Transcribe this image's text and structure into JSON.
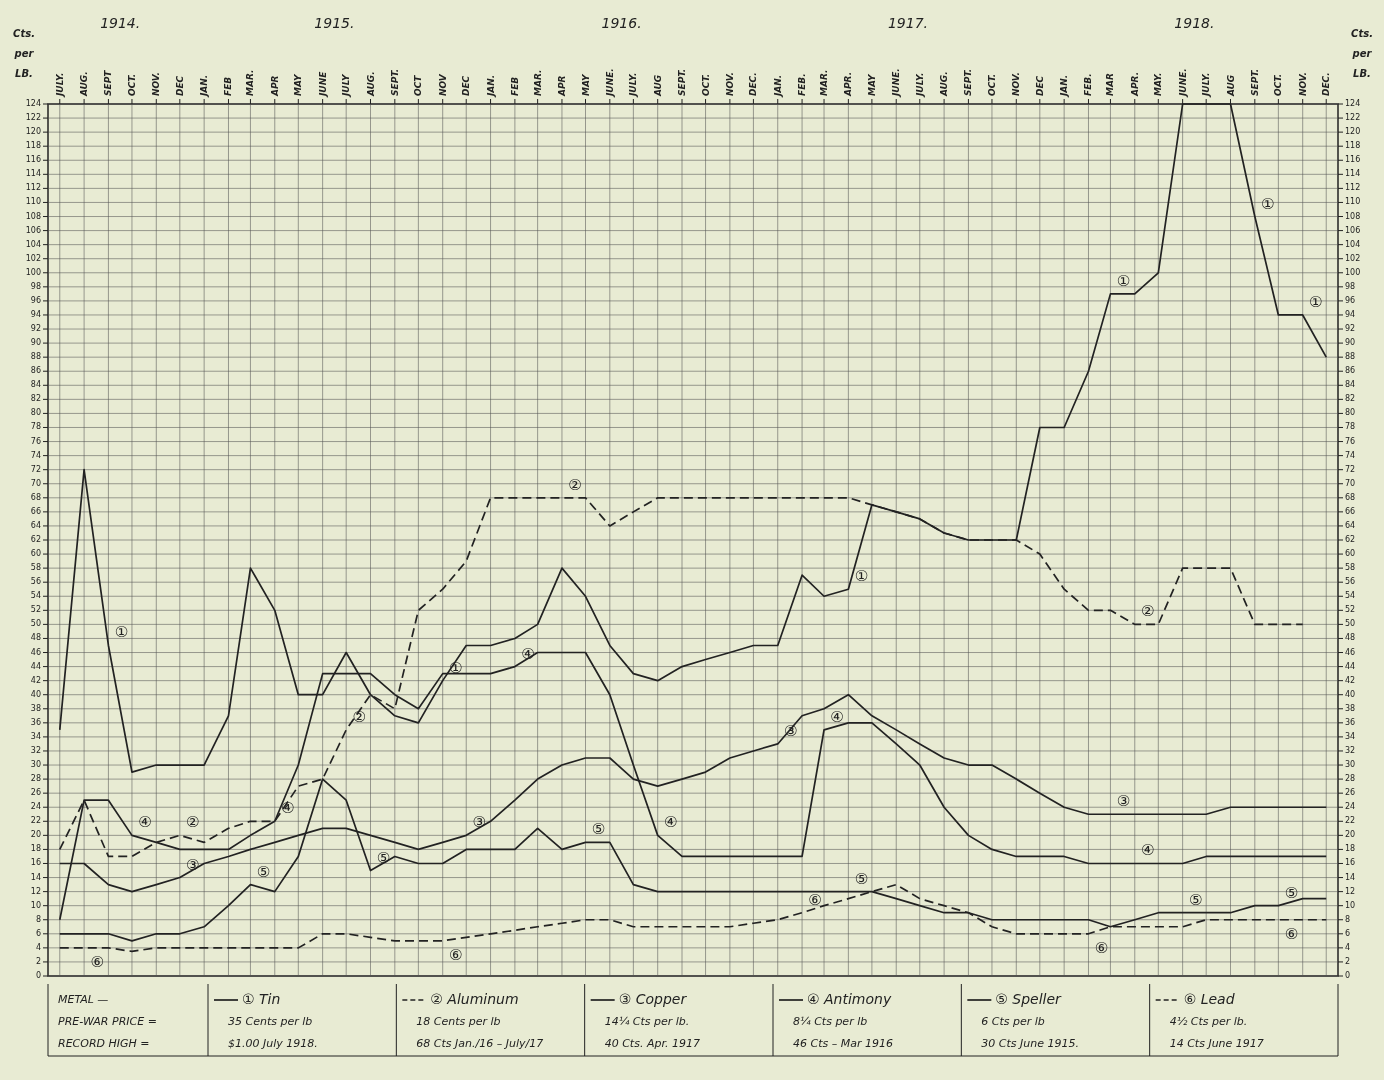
{
  "chart_data": {
    "type": "line",
    "x": [
      "1914-07",
      "1914-08",
      "1914-09",
      "1914-10",
      "1914-11",
      "1914-12",
      "1915-01",
      "1915-02",
      "1915-03",
      "1915-04",
      "1915-05",
      "1915-06",
      "1915-07",
      "1915-08",
      "1915-09",
      "1915-10",
      "1915-11",
      "1915-12",
      "1916-01",
      "1916-02",
      "1916-03",
      "1916-04",
      "1916-05",
      "1916-06",
      "1916-07",
      "1916-08",
      "1916-09",
      "1916-10",
      "1916-11",
      "1916-12",
      "1917-01",
      "1917-02",
      "1917-03",
      "1917-04",
      "1917-05",
      "1917-06",
      "1917-07",
      "1917-08",
      "1917-09",
      "1917-10",
      "1917-11",
      "1917-12",
      "1918-01",
      "1918-02",
      "1918-03",
      "1918-04",
      "1918-05",
      "1918-06",
      "1918-07",
      "1918-08",
      "1918-09",
      "1918-10",
      "1918-11",
      "1918-12"
    ],
    "xlim": [
      "1914-06-16",
      "1918-12-16"
    ],
    "xticks": [
      {
        "value": "1914-07",
        "label": "JULY."
      },
      {
        "value": "1914-08",
        "label": "AUG."
      },
      {
        "value": "1914-09",
        "label": "SEPT"
      },
      {
        "value": "1914-10",
        "label": "OCT."
      },
      {
        "value": "1914-11",
        "label": "NOV."
      },
      {
        "value": "1914-12",
        "label": "DEC"
      },
      {
        "value": "1915-01",
        "label": "JAN."
      },
      {
        "value": "1915-02",
        "label": "FEB"
      },
      {
        "value": "1915-03",
        "label": "MAR."
      },
      {
        "value": "1915-04",
        "label": "APR"
      },
      {
        "value": "1915-05",
        "label": "MAY"
      },
      {
        "value": "1915-06",
        "label": "JUNE"
      },
      {
        "value": "1915-07",
        "label": "JULY"
      },
      {
        "value": "1915-08",
        "label": "AUG."
      },
      {
        "value": "1915-09",
        "label": "SEPT."
      },
      {
        "value": "1915-10",
        "label": "OCT"
      },
      {
        "value": "1915-11",
        "label": "NOV"
      },
      {
        "value": "1915-12",
        "label": "DEC"
      },
      {
        "value": "1916-01",
        "label": "JAN."
      },
      {
        "value": "1916-02",
        "label": "FEB"
      },
      {
        "value": "1916-03",
        "label": "MAR."
      },
      {
        "value": "1916-04",
        "label": "APR"
      },
      {
        "value": "1916-05",
        "label": "MAY"
      },
      {
        "value": "1916-06",
        "label": "JUNE."
      },
      {
        "value": "1916-07",
        "label": "JULY."
      },
      {
        "value": "1916-08",
        "label": "AUG"
      },
      {
        "value": "1916-09",
        "label": "SEPT."
      },
      {
        "value": "1916-10",
        "label": "OCT."
      },
      {
        "value": "1916-11",
        "label": "NOV."
      },
      {
        "value": "1916-12",
        "label": "DEC."
      },
      {
        "value": "1917-01",
        "label": "JAN."
      },
      {
        "value": "1917-02",
        "label": "FEB."
      },
      {
        "value": "1917-03",
        "label": "MAR."
      },
      {
        "value": "1917-04",
        "label": "APR."
      },
      {
        "value": "1917-05",
        "label": "MAY"
      },
      {
        "value": "1917-06",
        "label": "JUNE."
      },
      {
        "value": "1917-07",
        "label": "JULY."
      },
      {
        "value": "1917-08",
        "label": "AUG."
      },
      {
        "value": "1917-09",
        "label": "SEPT."
      },
      {
        "value": "1917-10",
        "label": "OCT."
      },
      {
        "value": "1917-11",
        "label": "NOV."
      },
      {
        "value": "1917-12",
        "label": "DEC"
      },
      {
        "value": "1918-01",
        "label": "JAN."
      },
      {
        "value": "1918-02",
        "label": "FEB."
      },
      {
        "value": "1918-03",
        "label": "MAR"
      },
      {
        "value": "1918-04",
        "label": "APR."
      },
      {
        "value": "1918-05",
        "label": "MAY."
      },
      {
        "value": "1918-06",
        "label": "JUNE."
      },
      {
        "value": "1918-07",
        "label": "JULY."
      },
      {
        "value": "1918-08",
        "label": "AUG"
      },
      {
        "value": "1918-09",
        "label": "SEPT."
      },
      {
        "value": "1918-10",
        "label": "OCT."
      },
      {
        "value": "1918-11",
        "label": "NOV."
      },
      {
        "value": "1918-12",
        "label": "DEC."
      }
    ],
    "x2lim": [
      "1914-06-16",
      "1918-12-16"
    ],
    "x2ticks": [
      {
        "value": "1914-09-16",
        "label": "1914."
      },
      {
        "value": "1915-06-16",
        "label": "1915."
      },
      {
        "value": "1916-06-16",
        "label": "1916."
      },
      {
        "value": "1917-06-16",
        "label": "1917."
      },
      {
        "value": "1918-06-16",
        "label": "1918."
      }
    ],
    "ylabel": "Cts. per LB.",
    "y2label": "Cts. per LB.",
    "ylim": [
      0,
      124
    ],
    "yticks": [
      0,
      2,
      4,
      6,
      8,
      10,
      12,
      14,
      16,
      18,
      20,
      22,
      24,
      26,
      28,
      30,
      32,
      34,
      36,
      38,
      40,
      42,
      44,
      46,
      48,
      50,
      52,
      54,
      56,
      58,
      60,
      62,
      64,
      66,
      68,
      70,
      72,
      74,
      76,
      78,
      80,
      82,
      84,
      86,
      88,
      90,
      92,
      94,
      96,
      98,
      100,
      102,
      104,
      106,
      108,
      110,
      112,
      114,
      116,
      118,
      120,
      122,
      124
    ],
    "y2lim": [
      0,
      124
    ],
    "y2ticks": [
      0,
      2,
      4,
      6,
      8,
      10,
      12,
      14,
      16,
      18,
      20,
      22,
      24,
      26,
      28,
      30,
      32,
      34,
      36,
      38,
      40,
      42,
      44,
      46,
      48,
      50,
      52,
      54,
      56,
      58,
      60,
      62,
      64,
      66,
      68,
      70,
      72,
      74,
      76,
      78,
      80,
      82,
      84,
      86,
      88,
      90,
      92,
      94,
      96,
      98,
      100,
      102,
      104,
      106,
      108,
      110,
      112,
      114,
      116,
      118,
      120,
      122,
      124
    ],
    "grid": true,
    "legend": "bottom",
    "marker": "none",
    "series": [
      {
        "name": "① Tin",
        "color": "#222222",
        "line_style": "solid",
        "values": [
          35,
          72,
          47,
          29,
          30,
          30,
          30,
          37,
          58,
          52,
          40,
          40,
          46,
          40,
          37,
          36,
          42,
          47,
          47,
          48,
          50,
          58,
          54,
          47,
          43,
          42,
          44,
          45,
          46,
          47,
          47,
          57,
          54,
          55,
          67,
          66,
          65,
          63,
          62,
          62,
          62,
          78,
          78,
          86,
          97,
          97,
          100,
          124,
          124,
          124,
          108,
          94,
          94,
          88
        ]
      },
      {
        "name": "② Aluminum",
        "color": "#222222",
        "line_style": "dashed",
        "values": [
          18,
          25,
          17,
          17,
          19,
          20,
          19,
          21,
          22,
          22,
          27,
          28,
          35,
          40,
          38,
          52,
          55,
          59,
          68,
          68,
          68,
          68,
          68,
          64,
          66,
          68,
          68,
          68,
          68,
          68,
          68,
          68,
          68,
          68,
          67,
          66,
          65,
          63,
          62,
          62,
          62,
          60,
          55,
          52,
          52,
          50,
          50,
          58,
          58,
          58,
          50,
          50,
          50,
          null
        ]
      },
      {
        "name": "③ Copper",
        "color": "#222222",
        "line_style": "solid",
        "values": [
          16,
          16,
          13,
          12,
          13,
          14,
          16,
          17,
          18,
          19,
          20,
          21,
          21,
          20,
          19,
          18,
          19,
          20,
          22,
          25,
          28,
          30,
          31,
          31,
          28,
          27,
          28,
          29,
          31,
          32,
          33,
          37,
          38,
          40,
          37,
          35,
          33,
          31,
          30,
          30,
          28,
          26,
          24,
          23,
          23,
          23,
          23,
          23,
          23,
          24,
          24,
          24,
          24,
          24
        ]
      },
      {
        "name": "④ Antimony",
        "color": "#222222",
        "line_style": "solid",
        "values": [
          8,
          25,
          25,
          20,
          19,
          18,
          18,
          18,
          20,
          22,
          30,
          43,
          43,
          43,
          40,
          38,
          43,
          43,
          43,
          44,
          46,
          46,
          46,
          40,
          30,
          20,
          17,
          17,
          17,
          17,
          17,
          17,
          35,
          36,
          36,
          33,
          30,
          24,
          20,
          18,
          17,
          17,
          17,
          16,
          16,
          16,
          16,
          16,
          17,
          17,
          17,
          17,
          17,
          17
        ]
      },
      {
        "name": "⑤ Speller",
        "color": "#222222",
        "line_style": "solid",
        "values": [
          6,
          6,
          6,
          5,
          6,
          6,
          7,
          10,
          13,
          12,
          17,
          28,
          25,
          15,
          17,
          16,
          16,
          18,
          18,
          18,
          21,
          18,
          19,
          19,
          13,
          12,
          12,
          12,
          12,
          12,
          12,
          12,
          12,
          12,
          12,
          11,
          10,
          9,
          9,
          8,
          8,
          8,
          8,
          8,
          7,
          8,
          9,
          9,
          9,
          9,
          10,
          10,
          11,
          11
        ]
      },
      {
        "name": "⑥ Lead",
        "color": "#222222",
        "line_style": "dashed",
        "values": [
          4,
          4,
          4,
          3.5,
          4,
          4,
          4,
          4,
          4,
          4,
          4,
          6,
          6,
          5.5,
          5,
          5,
          5,
          5.5,
          6,
          6.5,
          7,
          7.5,
          8,
          8,
          7,
          7,
          7,
          7,
          7,
          7.5,
          8,
          9,
          10,
          11,
          12,
          13,
          11,
          10,
          9,
          7,
          6,
          6,
          6,
          6,
          7,
          7,
          7,
          7,
          8,
          8,
          8,
          8,
          8,
          8
        ]
      }
    ],
    "annotations": [
      "METAL —",
      "PRE-WAR PRICE =",
      "RECORD HIGH =",
      "35 Cents per lb",
      "$1.00 July 1918.",
      "18 Cents per lb",
      "68 Cts Jan./16 – July/17",
      "14¼ Cts per lb.",
      "40 Cts. Apr. 1917",
      "8¼ Cts per lb",
      "46 Cts – Mar 1916",
      "6 Cts per lb",
      "30 Cts June 1915.",
      "4½ Cts per lb.",
      "14 Cts June 1917",
      {
        "text": "①",
        "x": "1914-09",
        "y": 47
      },
      {
        "text": "①",
        "x": "1915-11",
        "y": 42
      },
      {
        "text": "①",
        "x": "1917-04",
        "y": 55
      },
      {
        "text": "①",
        "x": "1918-03",
        "y": 97
      },
      {
        "text": "①",
        "x": "1918-09",
        "y": 108
      },
      {
        "text": "①",
        "x": "1918-11",
        "y": 94
      },
      {
        "text": "②",
        "x": "1916-04",
        "y": 68
      },
      {
        "text": "②",
        "x": "1915-07",
        "y": 35
      },
      {
        "text": "②",
        "x": "1914-12",
        "y": 20
      },
      {
        "text": "②",
        "x": "1918-04",
        "y": 50
      },
      {
        "text": "③",
        "x": "1914-12",
        "y": 14
      },
      {
        "text": "③",
        "x": "1915-12",
        "y": 20
      },
      {
        "text": "③",
        "x": "1917-01",
        "y": 33
      },
      {
        "text": "③",
        "x": "1918-03",
        "y": 23
      },
      {
        "text": "④",
        "x": "1914-10",
        "y": 20
      },
      {
        "text": "④",
        "x": "1915-04",
        "y": 22
      },
      {
        "text": "④",
        "x": "1916-02",
        "y": 44
      },
      {
        "text": "④",
        "x": "1916-08",
        "y": 20
      },
      {
        "text": "④",
        "x": "1917-03",
        "y": 35
      },
      {
        "text": "④",
        "x": "1918-04",
        "y": 16
      },
      {
        "text": "⑤",
        "x": "1915-03",
        "y": 13
      },
      {
        "text": "⑤",
        "x": "1915-08",
        "y": 15
      },
      {
        "text": "⑤",
        "x": "1916-05",
        "y": 19
      },
      {
        "text": "⑤",
        "x": "1917-04",
        "y": 12
      },
      {
        "text": "⑤",
        "x": "1918-06",
        "y": 9
      },
      {
        "text": "⑤",
        "x": "1918-10",
        "y": 10
      },
      {
        "text": "⑥",
        "x": "1914-08",
        "y": 4
      },
      {
        "text": "⑥",
        "x": "1915-11",
        "y": 5
      },
      {
        "text": "⑥",
        "x": "1917-02",
        "y": 9
      },
      {
        "text": "⑥",
        "x": "1918-02",
        "y": 6
      },
      {
        "text": "⑥",
        "x": "1918-10",
        "y": 8
      }
    ]
  }
}
